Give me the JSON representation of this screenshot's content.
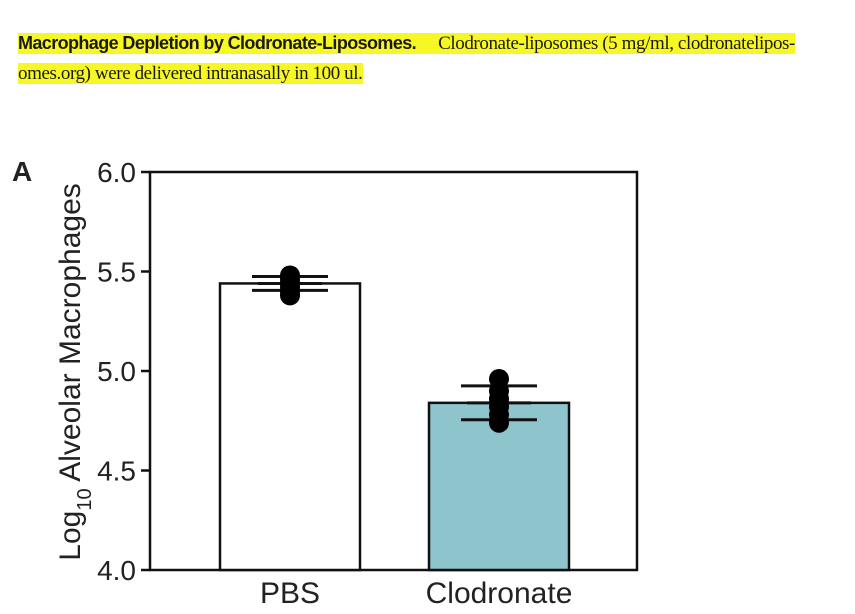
{
  "caption": {
    "title": "Macrophage Depletion by Clodronate-Liposomes.",
    "line1": "Clodronate-liposomes (5 mg/ml, clodronatelipos-",
    "line2": "omes.org) were delivered intranasally in 100 ul."
  },
  "panel_label": "A",
  "chart_data": {
    "type": "bar",
    "categories": [
      "PBS",
      "Clodronate"
    ],
    "values": [
      5.44,
      4.84
    ],
    "error": {
      "upper": [
        5.475,
        4.925
      ],
      "lower": [
        5.405,
        4.755
      ]
    },
    "points": [
      [
        5.38,
        5.4,
        5.42,
        5.44,
        5.46,
        5.48
      ],
      [
        4.74,
        4.78,
        4.82,
        4.86,
        4.9,
        4.96
      ]
    ],
    "ylabel_main": "Log",
    "ylabel_sub": "10",
    "ylabel_rest": " Alveolar Macrophages",
    "ylim": [
      4.0,
      6.0
    ],
    "yticks": [
      "4.0",
      "4.5",
      "5.0",
      "5.5",
      "6.0"
    ],
    "ytick_values": [
      4.0,
      4.5,
      5.0,
      5.5,
      6.0
    ],
    "grid": false,
    "colors": {
      "PBS": "#ffffff",
      "Clodronate": "#8ec5cc",
      "stroke": "#111111",
      "points": "#000000"
    }
  }
}
